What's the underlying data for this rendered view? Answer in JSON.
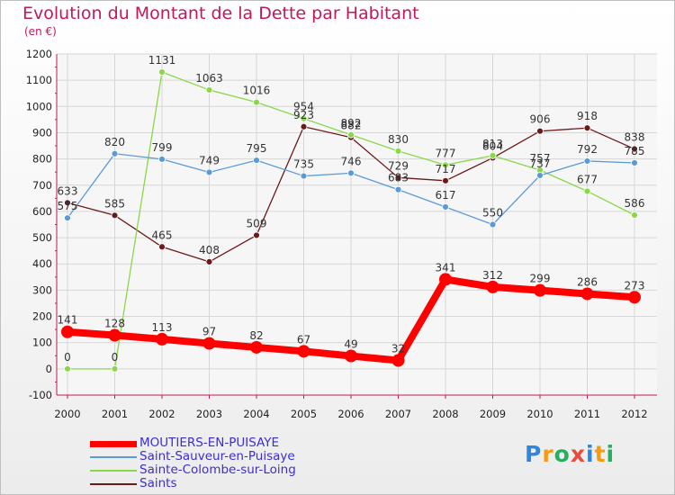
{
  "chart_data": {
    "type": "line",
    "title": "Evolution du Montant de la Dette par Habitant",
    "subtitle": "(en €)",
    "categories": [
      "2000",
      "2001",
      "2002",
      "2003",
      "2004",
      "2005",
      "2006",
      "2007",
      "2008",
      "2009",
      "2010",
      "2011",
      "2012"
    ],
    "ylim": [
      -100,
      1200
    ],
    "yticks": [
      -100,
      0,
      100,
      200,
      300,
      400,
      500,
      600,
      700,
      800,
      900,
      1000,
      1100,
      1200
    ],
    "grid": true,
    "legend_position": "bottom",
    "series": [
      {
        "name": "MOUTIERS-EN-PUISAYE",
        "color": "#ff0000",
        "values": [
          141,
          128,
          113,
          97,
          82,
          67,
          49,
          32,
          341,
          312,
          299,
          286,
          273
        ]
      },
      {
        "name": "Saint-Sauveur-en-Puisaye",
        "color": "#5b9bd5",
        "values": [
          575,
          820,
          799,
          749,
          795,
          735,
          746,
          683,
          617,
          550,
          737,
          792,
          785
        ]
      },
      {
        "name": "Sainte-Colombe-sur-Loing",
        "color": "#8ad84a",
        "values": [
          0,
          0,
          1131,
          1063,
          1016,
          954,
          892,
          830,
          777,
          813,
          757,
          677,
          586
        ]
      },
      {
        "name": "Saints",
        "color": "#6b1a1a",
        "values": [
          633,
          585,
          465,
          408,
          509,
          923,
          882,
          729,
          717,
          804,
          906,
          918,
          838
        ]
      }
    ]
  },
  "logo": {
    "text": "Proxiti",
    "letters": [
      "P",
      "r",
      "o",
      "x",
      "i",
      "t",
      "i"
    ]
  }
}
